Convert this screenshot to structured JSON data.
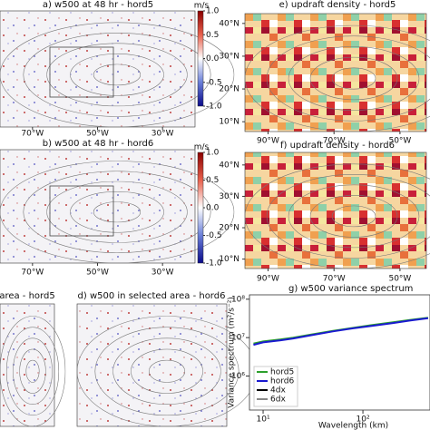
{
  "chart_data": [
    {
      "type": "map",
      "title": "a) w500 at 48 hr - hord5",
      "xlim": [
        -80,
        -20
      ],
      "xticks": [
        {
          "value": -70,
          "label": "70°W"
        },
        {
          "value": -50,
          "label": "50°W"
        },
        {
          "value": -30,
          "label": "30°W"
        }
      ],
      "colorbar": {
        "label": "m/s",
        "lim": [
          -1,
          1
        ],
        "ticks": [
          {
            "value": 1,
            "label": "1.0"
          },
          {
            "value": 0.5,
            "label": "0.5"
          },
          {
            "value": 0,
            "label": "0.0"
          },
          {
            "value": -0.5,
            "label": "-0.5"
          },
          {
            "value": -1,
            "label": "-1.0"
          }
        ]
      }
    },
    {
      "type": "map",
      "title": "e) updraft density - hord5",
      "xlim": [
        -97,
        -42
      ],
      "ylim": [
        7,
        43
      ],
      "xticks": [
        {
          "value": -90,
          "label": "90°W"
        },
        {
          "value": -70,
          "label": "70°W"
        },
        {
          "value": -50,
          "label": "50°W"
        }
      ],
      "yticks": [
        {
          "value": 10,
          "label": "10°N"
        },
        {
          "value": 20,
          "label": "20°N"
        },
        {
          "value": 30,
          "label": "30°N"
        },
        {
          "value": 40,
          "label": "40°N"
        }
      ]
    },
    {
      "type": "map",
      "title": "b) w500 at 48 hr - hord6",
      "xlim": [
        -80,
        -20
      ],
      "xticks": [
        {
          "value": -70,
          "label": "70°W"
        },
        {
          "value": -50,
          "label": "50°W"
        },
        {
          "value": -30,
          "label": "30°W"
        }
      ],
      "colorbar": {
        "label": "m/s",
        "lim": [
          -1,
          1
        ],
        "ticks": [
          {
            "value": 1,
            "label": "1.0"
          },
          {
            "value": 0.5,
            "label": "0.5"
          },
          {
            "value": 0,
            "label": "0.0"
          },
          {
            "value": -0.5,
            "label": "-0.5"
          },
          {
            "value": -1,
            "label": "-1.0"
          }
        ]
      }
    },
    {
      "type": "map",
      "title": "f) updraft density - hord6",
      "xlim": [
        -97,
        -42
      ],
      "ylim": [
        7,
        44
      ],
      "xticks": [
        {
          "value": -90,
          "label": "90°W"
        },
        {
          "value": -70,
          "label": "70°W"
        },
        {
          "value": -50,
          "label": "50°W"
        }
      ],
      "yticks": [
        {
          "value": 10,
          "label": "10°N"
        },
        {
          "value": 20,
          "label": "20°N"
        },
        {
          "value": 30,
          "label": "30°N"
        },
        {
          "value": 40,
          "label": "40°N"
        }
      ]
    },
    {
      "type": "map",
      "title": "area - hord5"
    },
    {
      "type": "map",
      "title": "d) w500 in selected area - hord6"
    },
    {
      "type": "line",
      "title": "g) w500 variance spectrum",
      "x_label": "Wavelength (km)",
      "y_label": "Variance spectrum (m²/s⁻²)",
      "log_x": true,
      "log_y": true,
      "xlim": [
        7.3,
        470
      ],
      "ylim": [
        130000,
        130000000
      ],
      "xticks": [
        {
          "value": 10,
          "label": "10¹"
        },
        {
          "value": 100,
          "label": "10²"
        }
      ],
      "yticks": [
        {
          "value": 1000000,
          "label": "10⁶"
        },
        {
          "value": 10000000,
          "label": "10⁷"
        },
        {
          "value": 100000000,
          "label": "10⁸"
        }
      ],
      "x": [
        8,
        10,
        15,
        20,
        30,
        50,
        80,
        120,
        200,
        300,
        450
      ],
      "series": [
        {
          "name": "hord5",
          "color": "#2ca02c",
          "values": [
            7000000,
            8000000,
            9000000,
            10000000,
            12000000,
            15000000,
            18000000,
            21000000,
            25000000,
            29000000,
            33000000
          ]
        },
        {
          "name": "hord6",
          "color": "#1a1ad0",
          "values": [
            6500000,
            7500000,
            8500000,
            9500000,
            11500000,
            14500000,
            17500000,
            20000000,
            24000000,
            28000000,
            32000000
          ]
        }
      ],
      "legend_only": [
        {
          "name": "4dx",
          "color": "#000000"
        },
        {
          "name": "6dx",
          "color": "#888888"
        }
      ]
    }
  ]
}
